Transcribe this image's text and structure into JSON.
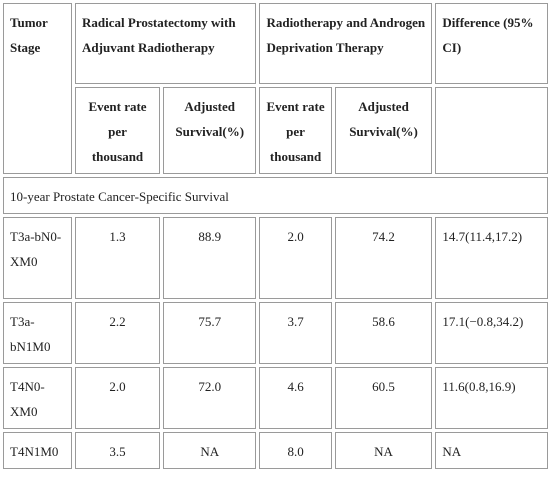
{
  "header": {
    "tumor_stage": "Tumor Stage",
    "rp_group": "Radical Prostatectomy with Adjuvant Radiotherapy",
    "rt_group": "Radiotherapy and Androgen Deprivation Therapy",
    "difference": "Difference (95% CI)",
    "event_rate": "Event rate per thousand",
    "adjusted_survival": "Adjusted Survival(%)"
  },
  "section_title": "10-year Prostate Cancer-Specific Survival",
  "rows": [
    {
      "stage": "T3a-bN0-XM0",
      "rp_event": "1.3",
      "rp_surv": "88.9",
      "rt_event": "2.0",
      "rt_surv": "74.2",
      "diff": "14.7(11.4,17.2)"
    },
    {
      "stage": "T3a-bN1M0",
      "rp_event": "2.2",
      "rp_surv": "75.7",
      "rt_event": "3.7",
      "rt_surv": "58.6",
      "diff": "17.1(−0.8,34.2)"
    },
    {
      "stage": "T4N0-XM0",
      "rp_event": "2.0",
      "rp_surv": "72.0",
      "rt_event": "4.6",
      "rt_surv": "60.5",
      "diff": "11.6(0.8,16.9)"
    },
    {
      "stage": "T4N1M0",
      "rp_event": "3.5",
      "rp_surv": "NA",
      "rt_event": "8.0",
      "rt_surv": "NA",
      "diff": "NA"
    }
  ]
}
